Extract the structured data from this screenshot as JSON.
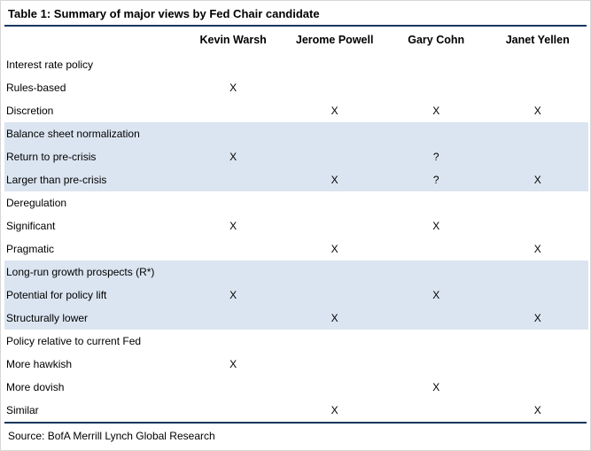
{
  "title": "Table 1: Summary of major views by Fed Chair candidate",
  "source": "Source: BofA Merrill Lynch Global Research",
  "colors": {
    "band_blue": "#dbe5f1",
    "rule_navy": "#17365d",
    "background": "#ffffff",
    "text": "#000000"
  },
  "chart_data": {
    "type": "table",
    "title": "Table 1: Summary of major views by Fed Chair candidate",
    "columns": [
      "",
      "Kevin Warsh",
      "Jerome Powell",
      "Gary Cohn",
      "Janet Yellen"
    ],
    "rows": [
      {
        "label": "Interest rate policy",
        "section": true,
        "shaded": false,
        "cells": [
          "",
          "",
          "",
          ""
        ]
      },
      {
        "label": "Rules-based",
        "section": false,
        "shaded": false,
        "cells": [
          "X",
          "",
          "",
          ""
        ]
      },
      {
        "label": "Discretion",
        "section": false,
        "shaded": false,
        "cells": [
          "",
          "X",
          "X",
          "X"
        ]
      },
      {
        "label": "Balance sheet normalization",
        "section": true,
        "shaded": true,
        "cells": [
          "",
          "",
          "",
          ""
        ]
      },
      {
        "label": "Return to pre-crisis",
        "section": false,
        "shaded": true,
        "cells": [
          "X",
          "",
          "?",
          ""
        ]
      },
      {
        "label": "Larger than pre-crisis",
        "section": false,
        "shaded": true,
        "cells": [
          "",
          "X",
          "?",
          "X"
        ]
      },
      {
        "label": "Deregulation",
        "section": true,
        "shaded": false,
        "cells": [
          "",
          "",
          "",
          ""
        ]
      },
      {
        "label": "Significant",
        "section": false,
        "shaded": false,
        "cells": [
          "X",
          "",
          "X",
          ""
        ]
      },
      {
        "label": "Pragmatic",
        "section": false,
        "shaded": false,
        "cells": [
          "",
          "X",
          "",
          "X"
        ]
      },
      {
        "label": "Long-run growth prospects (R*)",
        "section": true,
        "shaded": true,
        "cells": [
          "",
          "",
          "",
          ""
        ]
      },
      {
        "label": "Potential for policy lift",
        "section": false,
        "shaded": true,
        "cells": [
          "X",
          "",
          "X",
          ""
        ]
      },
      {
        "label": "Structurally lower",
        "section": false,
        "shaded": true,
        "cells": [
          "",
          "X",
          "",
          "X"
        ]
      },
      {
        "label": "Policy relative to current Fed",
        "section": true,
        "shaded": false,
        "cells": [
          "",
          "",
          "",
          ""
        ]
      },
      {
        "label": "More hawkish",
        "section": false,
        "shaded": false,
        "cells": [
          "X",
          "",
          "",
          ""
        ]
      },
      {
        "label": "More dovish",
        "section": false,
        "shaded": false,
        "cells": [
          "",
          "",
          "X",
          ""
        ]
      },
      {
        "label": "Similar",
        "section": false,
        "shaded": false,
        "cells": [
          "",
          "X",
          "",
          "X"
        ]
      }
    ]
  }
}
